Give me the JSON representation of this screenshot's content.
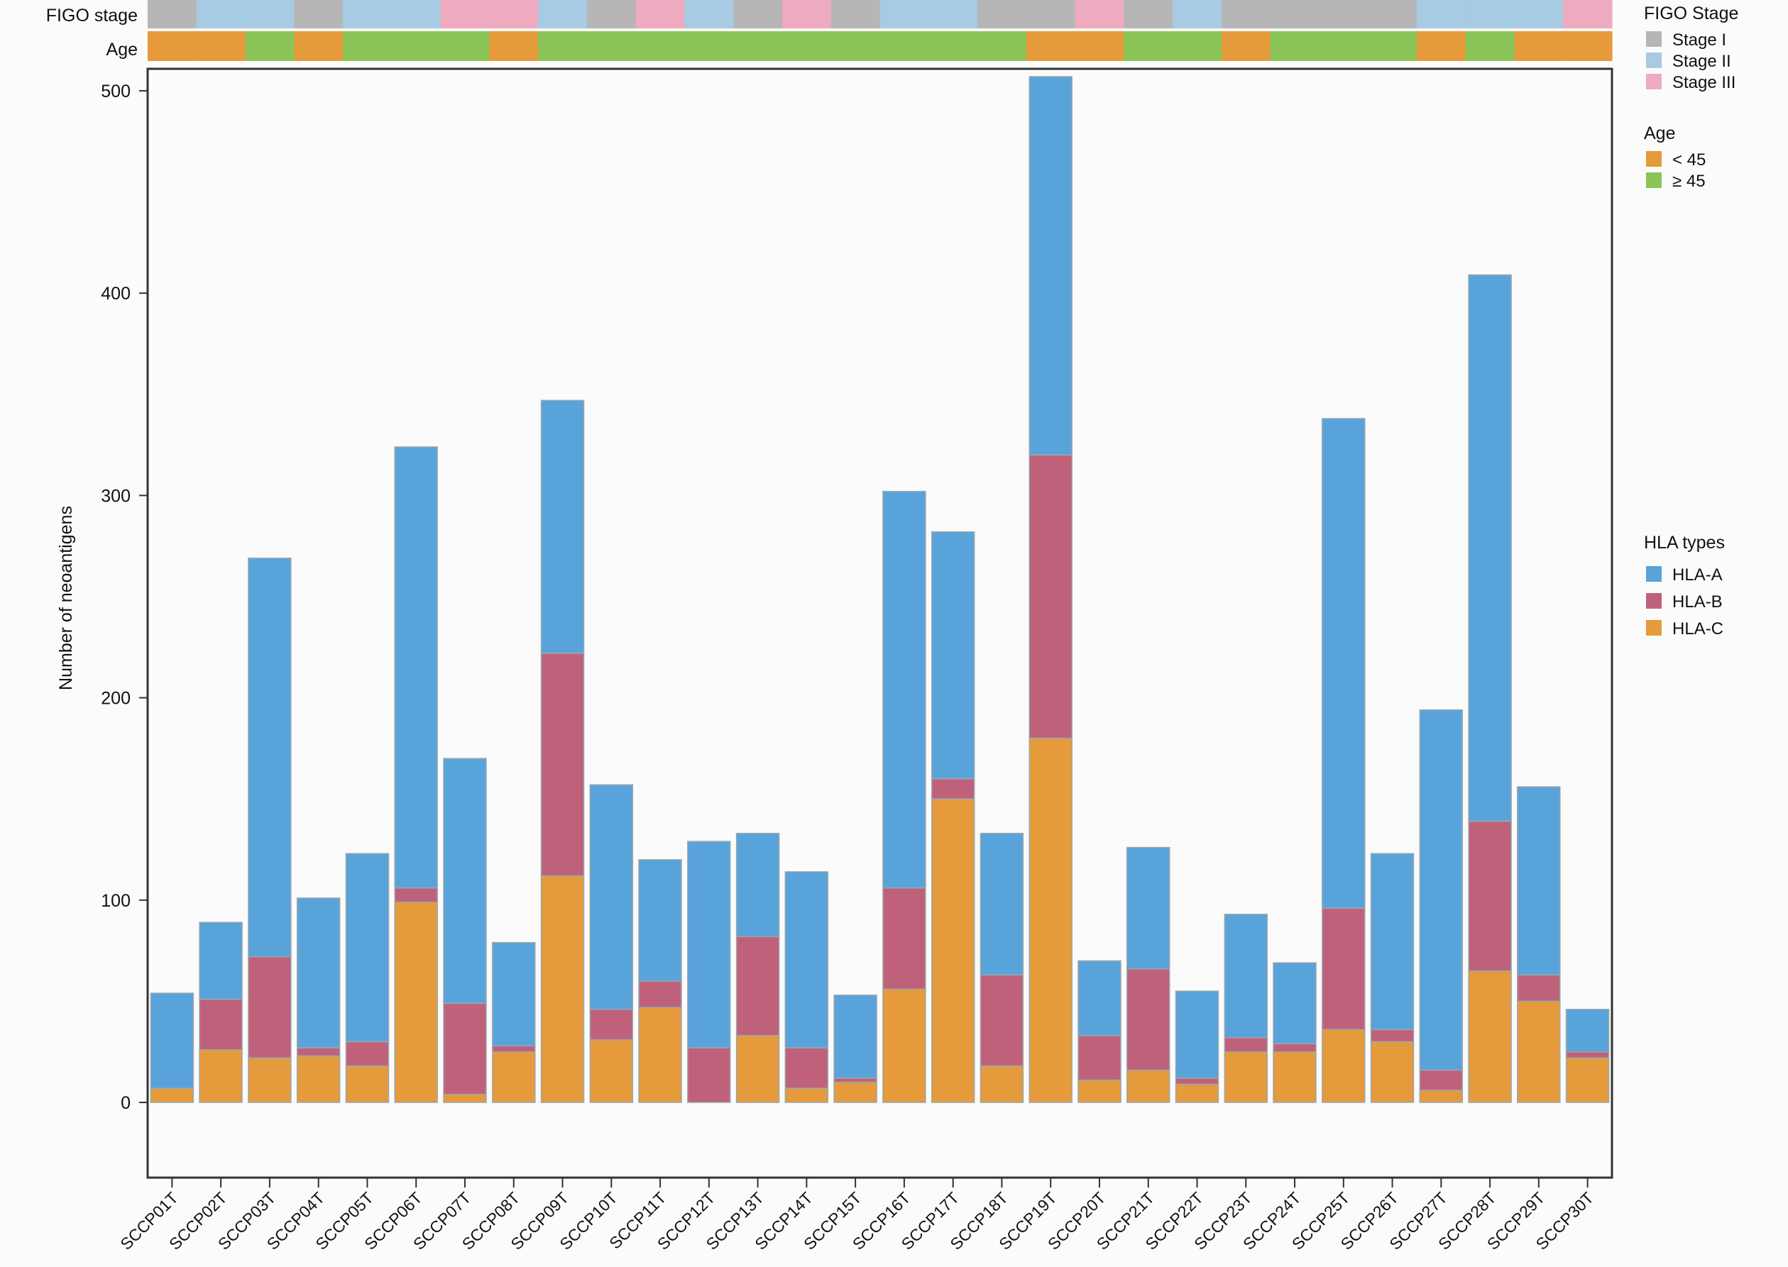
{
  "chart_data": {
    "type": "bar",
    "stacked": true,
    "categories": [
      "SCCP01T",
      "SCCP02T",
      "SCCP03T",
      "SCCP04T",
      "SCCP05T",
      "SCCP06T",
      "SCCP07T",
      "SCCP08T",
      "SCCP09T",
      "SCCP10T",
      "SCCP11T",
      "SCCP12T",
      "SCCP13T",
      "SCCP14T",
      "SCCP15T",
      "SCCP16T",
      "SCCP17T",
      "SCCP18T",
      "SCCP19T",
      "SCCP20T",
      "SCCP21T",
      "SCCP22T",
      "SCCP23T",
      "SCCP24T",
      "SCCP25T",
      "SCCP26T",
      "SCCP27T",
      "SCCP28T",
      "SCCP29T",
      "SCCP30T"
    ],
    "ylabel": "Number of neoantigens",
    "xlabel": "",
    "title": "",
    "ylim": [
      -37,
      510
    ],
    "yticks": [
      0,
      100,
      200,
      300,
      400,
      500
    ],
    "grid": false,
    "series": [
      {
        "name": "HLA-C",
        "color": "#e59a3b",
        "values": [
          7,
          26,
          22,
          23,
          18,
          99,
          4,
          25,
          112,
          31,
          47,
          0,
          33,
          7,
          10,
          56,
          150,
          18,
          180,
          11,
          16,
          9,
          25,
          25,
          36,
          30,
          6,
          65,
          50,
          22
        ]
      },
      {
        "name": "HLA-B",
        "color": "#c0617b",
        "values": [
          0,
          25,
          50,
          4,
          12,
          7,
          45,
          3,
          110,
          15,
          13,
          27,
          49,
          20,
          2,
          50,
          10,
          45,
          140,
          22,
          50,
          3,
          7,
          4,
          60,
          6,
          10,
          74,
          13,
          3
        ]
      },
      {
        "name": "HLA-A",
        "color": "#59a3db",
        "values": [
          47,
          38,
          197,
          74,
          93,
          218,
          121,
          51,
          125,
          111,
          60,
          102,
          51,
          87,
          41,
          196,
          122,
          70,
          187,
          37,
          60,
          43,
          61,
          40,
          242,
          87,
          178,
          270,
          93,
          21
        ]
      }
    ],
    "annotation_tracks": [
      {
        "label": "FIGO stage",
        "legend_title": "FIGO Stage",
        "classes": [
          {
            "name": "Stage I",
            "color": "#b6b6b6"
          },
          {
            "name": "Stage II",
            "color": "#a7cbe3"
          },
          {
            "name": "Stage III",
            "color": "#eeaabf"
          }
        ],
        "values": [
          "Stage I",
          "Stage II",
          "Stage II",
          "Stage I",
          "Stage II",
          "Stage II",
          "Stage III",
          "Stage III",
          "Stage II",
          "Stage I",
          "Stage III",
          "Stage II",
          "Stage I",
          "Stage III",
          "Stage I",
          "Stage II",
          "Stage II",
          "Stage I",
          "Stage I",
          "Stage III",
          "Stage I",
          "Stage II",
          "Stage I",
          "Stage I",
          "Stage I",
          "Stage I",
          "Stage II",
          "Stage II",
          "Stage II",
          "Stage III"
        ]
      },
      {
        "label": "Age",
        "legend_title": "Age",
        "classes": [
          {
            "name": "< 45",
            "color": "#e59a3b"
          },
          {
            "name": "≥ 45",
            "color": "#8cc557"
          }
        ],
        "values": [
          "< 45",
          "< 45",
          "≥ 45",
          "< 45",
          "≥ 45",
          "≥ 45",
          "≥ 45",
          "< 45",
          "≥ 45",
          "≥ 45",
          "≥ 45",
          "≥ 45",
          "≥ 45",
          "≥ 45",
          "≥ 45",
          "≥ 45",
          "≥ 45",
          "≥ 45",
          "< 45",
          "< 45",
          "≥ 45",
          "≥ 45",
          "< 45",
          "≥ 45",
          "≥ 45",
          "≥ 45",
          "< 45",
          "≥ 45",
          "< 45",
          "< 45"
        ]
      }
    ],
    "legend": {
      "title": "HLA types",
      "entries": [
        "HLA-A",
        "HLA-B",
        "HLA-C"
      ],
      "placement": "right"
    }
  }
}
